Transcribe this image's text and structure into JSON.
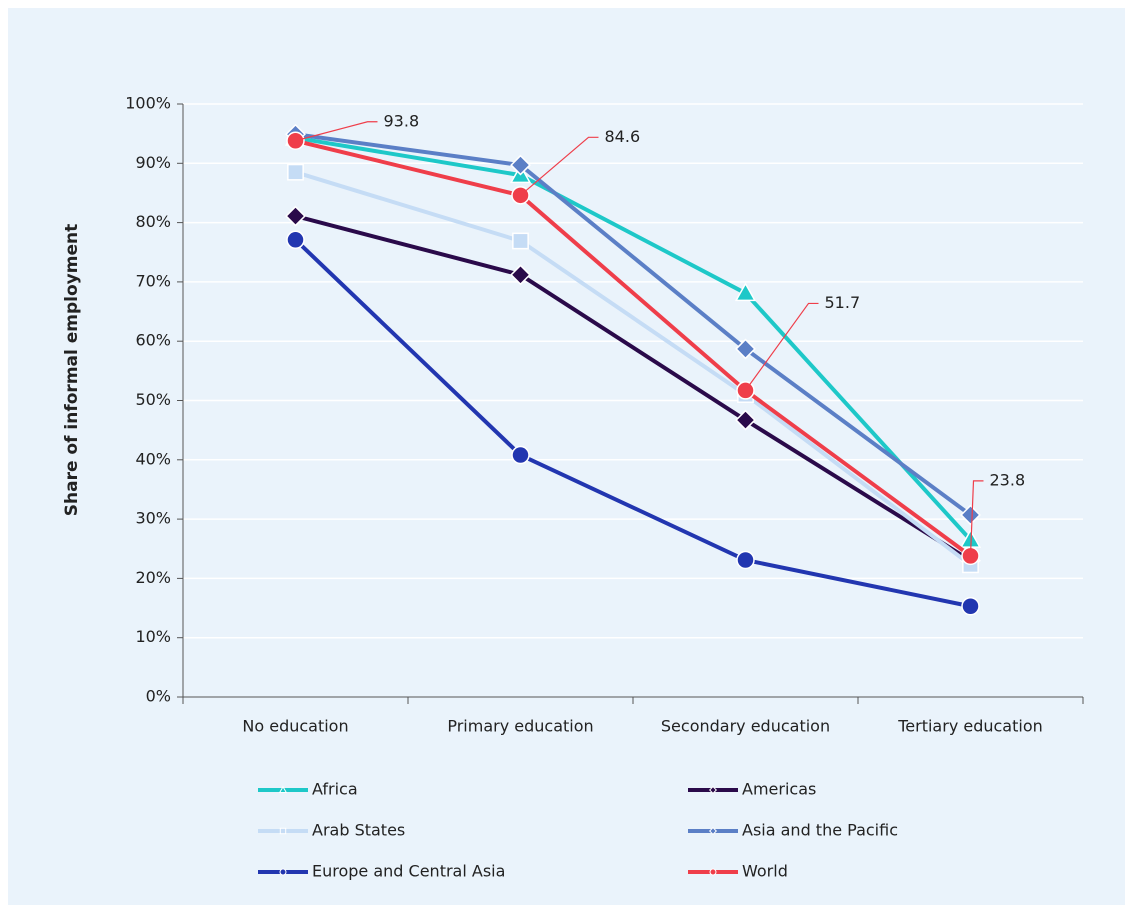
{
  "chart_data": {
    "type": "line",
    "y_axis_label": "Share of informal employment",
    "categories": [
      "No education",
      "Primary education",
      "Secondary education",
      "Tertiary education"
    ],
    "series": [
      {
        "name": "Africa",
        "color": "#1ec8c8",
        "marker": "triangle",
        "values": [
          94.3,
          88.0,
          68.1,
          26.5
        ]
      },
      {
        "name": "Americas",
        "color": "#2a0a4a",
        "marker": "diamond",
        "values": [
          81.1,
          71.2,
          46.7,
          23.0
        ]
      },
      {
        "name": "Arab States",
        "color": "#c5dcf5",
        "marker": "square",
        "values": [
          88.5,
          76.9,
          51.0,
          22.3
        ]
      },
      {
        "name": "Asia and the Pacific",
        "color": "#5b7fc6",
        "marker": "diamond",
        "values": [
          94.9,
          89.7,
          58.7,
          30.7
        ]
      },
      {
        "name": "Europe and Central Asia",
        "color": "#2236b0",
        "marker": "circle",
        "values": [
          77.1,
          40.8,
          23.1,
          15.3
        ]
      },
      {
        "name": "World",
        "color": "#ef3e4a",
        "marker": "circle",
        "values": [
          93.8,
          84.6,
          51.7,
          23.8
        ],
        "show_labels": true
      }
    ],
    "ylim": [
      0,
      100
    ],
    "yticks": [
      {
        "value": 0,
        "label": "0%"
      },
      {
        "value": 10,
        "label": "10%"
      },
      {
        "value": 20,
        "label": "20%"
      },
      {
        "value": 30,
        "label": "30%"
      },
      {
        "value": 40,
        "label": "40%"
      },
      {
        "value": 50,
        "label": "50%"
      },
      {
        "value": 60,
        "label": "60%"
      },
      {
        "value": 70,
        "label": "70%"
      },
      {
        "value": 80,
        "label": "80%"
      },
      {
        "value": 90,
        "label": "90%"
      },
      {
        "value": 100,
        "label": "100%"
      }
    ],
    "grid": true
  }
}
